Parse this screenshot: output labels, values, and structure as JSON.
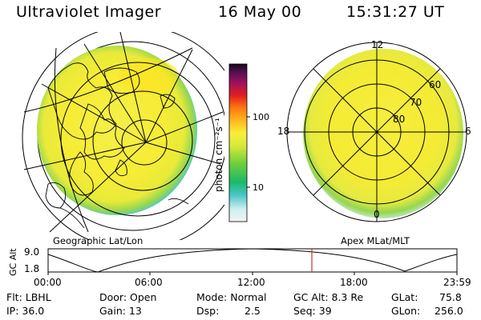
{
  "header": {
    "instrument": "Ultraviolet Imager",
    "date": "16 May 00",
    "time": "15:31:27 UT"
  },
  "colorbar": {
    "unit_label": "photon cm⁻²s⁻¹",
    "ticks": [
      "100",
      "10"
    ]
  },
  "left_map": {
    "caption": "Geographic Lat/Lon"
  },
  "right_map": {
    "caption": "Apex MLat/MLT",
    "mlt_labels": {
      "top": "12",
      "left": "18",
      "right": "6",
      "bottom": "0"
    },
    "lat_labels": [
      "60",
      "70",
      "80"
    ]
  },
  "timeline": {
    "y_axis_label": "GC Alt",
    "y_ticks": [
      "9.0",
      "1.8"
    ],
    "x_ticks": [
      "00:00",
      "06:00",
      "12:00",
      "18:00",
      "23:59"
    ],
    "marker_time": "15:31"
  },
  "info": {
    "row1": {
      "filter": "Flt: LBHL",
      "door": "Door: Open",
      "mode": "Mode: Normal",
      "gc_alt": "GC Alt: 8.3 Re",
      "glat_label": "GLat:",
      "glat_value": "75.8"
    },
    "row2": {
      "ip": "IP: 36.0",
      "gain": "Gain: 13",
      "dsp_label": "Dsp:",
      "dsp_value": "2.5",
      "seq": "Seq: 39",
      "glon_label": "GLon:",
      "glon_value": "256.0"
    }
  },
  "colors": {
    "background": "#ffffff",
    "disc_main": "#f5ee3a",
    "disc_bright": "#ffe020",
    "disc_edge_green": "#8fd24a",
    "disc_edge_cyan": "#49c8c8",
    "marker_line": "#d03030"
  }
}
